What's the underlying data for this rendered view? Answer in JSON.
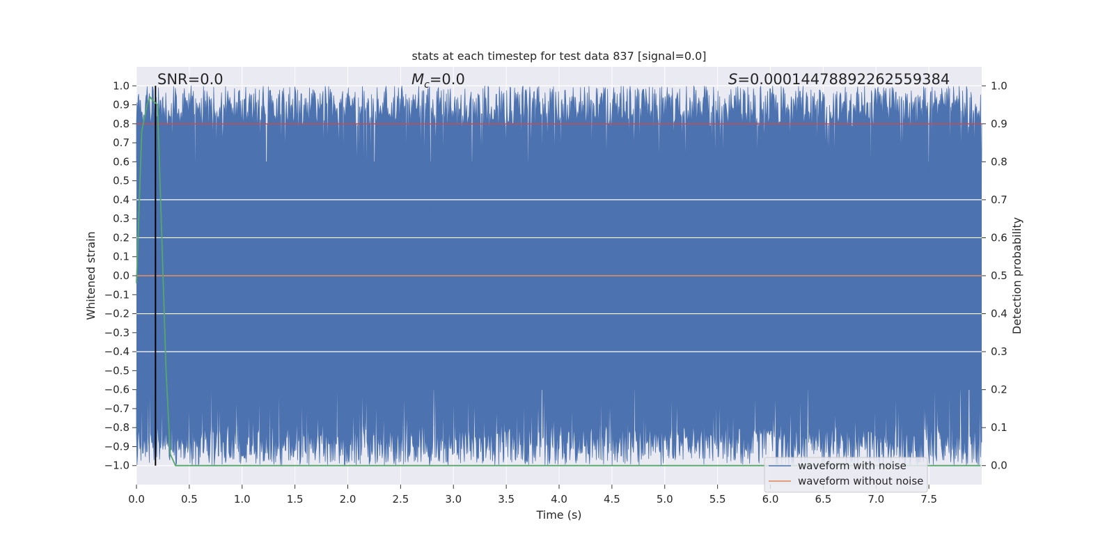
{
  "chart_data": {
    "type": "line",
    "title": "stats at each timestep for test data 837 [signal=0.0]",
    "xlabel": "Time (s)",
    "ylabel": "Whitened strain",
    "ylabel_right": "Detection probability",
    "xlim": [
      0.0,
      8.0
    ],
    "ylim": [
      -1.1,
      1.1
    ],
    "ylim_right": [
      -0.05,
      1.05
    ],
    "xticks": [
      0.0,
      0.5,
      1.0,
      1.5,
      2.0,
      2.5,
      3.0,
      3.5,
      4.0,
      4.5,
      5.0,
      5.5,
      6.0,
      6.5,
      7.0,
      7.5
    ],
    "xtick_labels": [
      "0.0",
      "0.5",
      "1.0",
      "1.5",
      "2.0",
      "2.5",
      "3.0",
      "3.5",
      "4.0",
      "4.5",
      "5.0",
      "5.5",
      "6.0",
      "6.5",
      "7.0",
      "7.5"
    ],
    "yticks": [
      1.0,
      0.9,
      0.8,
      0.7,
      0.6,
      0.5,
      0.4,
      0.3,
      0.2,
      0.1,
      0.0,
      -0.1,
      -0.2,
      -0.3,
      -0.4,
      -0.5,
      -0.6,
      -0.7,
      -0.8,
      -0.9,
      -1.0
    ],
    "ytick_labels": [
      "1.0",
      "0.9",
      "0.8",
      "0.7",
      "0.6",
      "0.5",
      "0.4",
      "0.3",
      "0.2",
      "0.1",
      "0.0",
      "−0.1",
      "−0.2",
      "−0.3",
      "−0.4",
      "−0.5",
      "−0.6",
      "−0.7",
      "−0.8",
      "−0.9",
      "−1.0"
    ],
    "yticks_right": [
      1.0,
      0.9,
      0.8,
      0.7,
      0.6,
      0.5,
      0.4,
      0.3,
      0.2,
      0.1,
      0.0
    ],
    "ytick_labels_right": [
      "1.0",
      "0.9",
      "0.8",
      "0.7",
      "0.6",
      "0.5",
      "0.4",
      "0.3",
      "0.2",
      "0.1",
      "0.0"
    ],
    "annotations": {
      "snr": "SNR=0.0",
      "mc_symbol": "M",
      "mc_sub": "c",
      "mc_value": "=0.0",
      "s_symbol": "S",
      "s_value": "=0.00014478892262559384"
    },
    "series": [
      {
        "name": "waveform with noise",
        "color": "#4c72b0",
        "description_range": [
          -1.0,
          1.0
        ],
        "style": "dense noise"
      },
      {
        "name": "waveform without noise",
        "color": "#dd8452",
        "constant_value": 0.0
      }
    ],
    "detection_probability": {
      "color": "#55a868",
      "x": [
        0.0,
        0.05,
        0.1,
        0.13,
        0.16,
        0.2,
        0.24,
        0.28,
        0.32,
        0.37,
        0.5,
        1.0,
        2.0,
        4.0,
        6.0,
        7.99
      ],
      "y": [
        0.48,
        0.88,
        0.95,
        0.97,
        0.96,
        0.95,
        0.6,
        0.25,
        0.03,
        0.0,
        0.0,
        0.0,
        0.0,
        0.0,
        0.0,
        0.0
      ]
    },
    "threshold": {
      "value": 0.9,
      "color": "#c44e52"
    },
    "marker_line": {
      "x": 0.18,
      "color": "#000000"
    },
    "legend": {
      "placement": "lower-right",
      "entries": [
        "waveform with noise",
        "waveform without noise"
      ]
    },
    "grid": true,
    "background": "#eaeaf2"
  }
}
